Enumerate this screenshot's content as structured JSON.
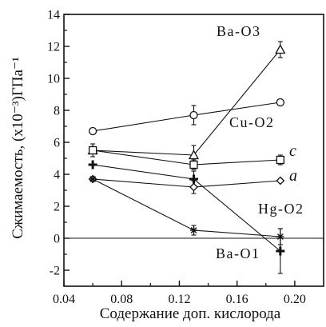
{
  "chart_data": {
    "type": "line",
    "xlabel": "Содержание доп. кислорода",
    "ylabel": "Сжимаемость, (x10⁻³)ГПа⁻¹",
    "xlim": [
      0.04,
      0.22
    ],
    "ylim": [
      -3,
      14
    ],
    "x_ticks": [
      0.04,
      0.08,
      0.12,
      0.16,
      0.2
    ],
    "x_tick_labels": [
      "0.04",
      "0.08",
      "0.12",
      "0.16",
      "0.20"
    ],
    "y_ticks": [
      -2,
      0,
      2,
      4,
      6,
      8,
      10,
      12,
      14
    ],
    "y_tick_labels": [
      "-2",
      "0",
      "2",
      "4",
      "6",
      "8",
      "10",
      "12",
      "14"
    ],
    "zero_line": true,
    "grid": false,
    "series": [
      {
        "name": "Ba-O3",
        "marker": "triangle",
        "x": [
          0.06,
          0.13,
          0.19
        ],
        "y": [
          5.5,
          5.2,
          11.8
        ],
        "yerr": [
          0,
          0.6,
          0.5
        ]
      },
      {
        "name": "Cu-O2",
        "marker": "circle",
        "x": [
          0.06,
          0.13,
          0.19
        ],
        "y": [
          6.7,
          7.7,
          8.5
        ],
        "yerr": [
          0,
          0.6,
          0
        ]
      },
      {
        "name": "c",
        "marker": "square",
        "x": [
          0.06,
          0.13,
          0.19
        ],
        "y": [
          5.5,
          4.6,
          4.9
        ],
        "yerr": [
          0.4,
          0.3,
          0.3
        ]
      },
      {
        "name": "a",
        "marker": "diamond",
        "x": [
          0.06,
          0.13,
          0.19
        ],
        "y": [
          3.7,
          3.2,
          3.6
        ],
        "yerr": [
          0,
          0.4,
          0
        ]
      },
      {
        "name": "Hg-O2",
        "marker": "asterisk",
        "x": [
          0.06,
          0.13,
          0.19
        ],
        "y": [
          3.7,
          0.5,
          0.1
        ],
        "yerr": [
          0,
          0.3,
          0.5
        ]
      },
      {
        "name": "Ba-O1",
        "marker": "cross",
        "x": [
          0.06,
          0.13,
          0.19
        ],
        "y": [
          4.6,
          3.7,
          -0.8
        ],
        "yerr": [
          0,
          0.5,
          1.4
        ]
      }
    ]
  }
}
